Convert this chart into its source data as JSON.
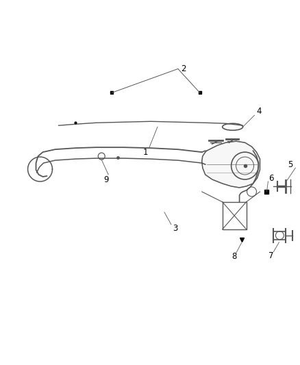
{
  "background_color": "#ffffff",
  "line_color": "#555555",
  "label_color": "#000000",
  "fig_width": 4.38,
  "fig_height": 5.33,
  "dpi": 100,
  "label_fontsize": 8.5
}
